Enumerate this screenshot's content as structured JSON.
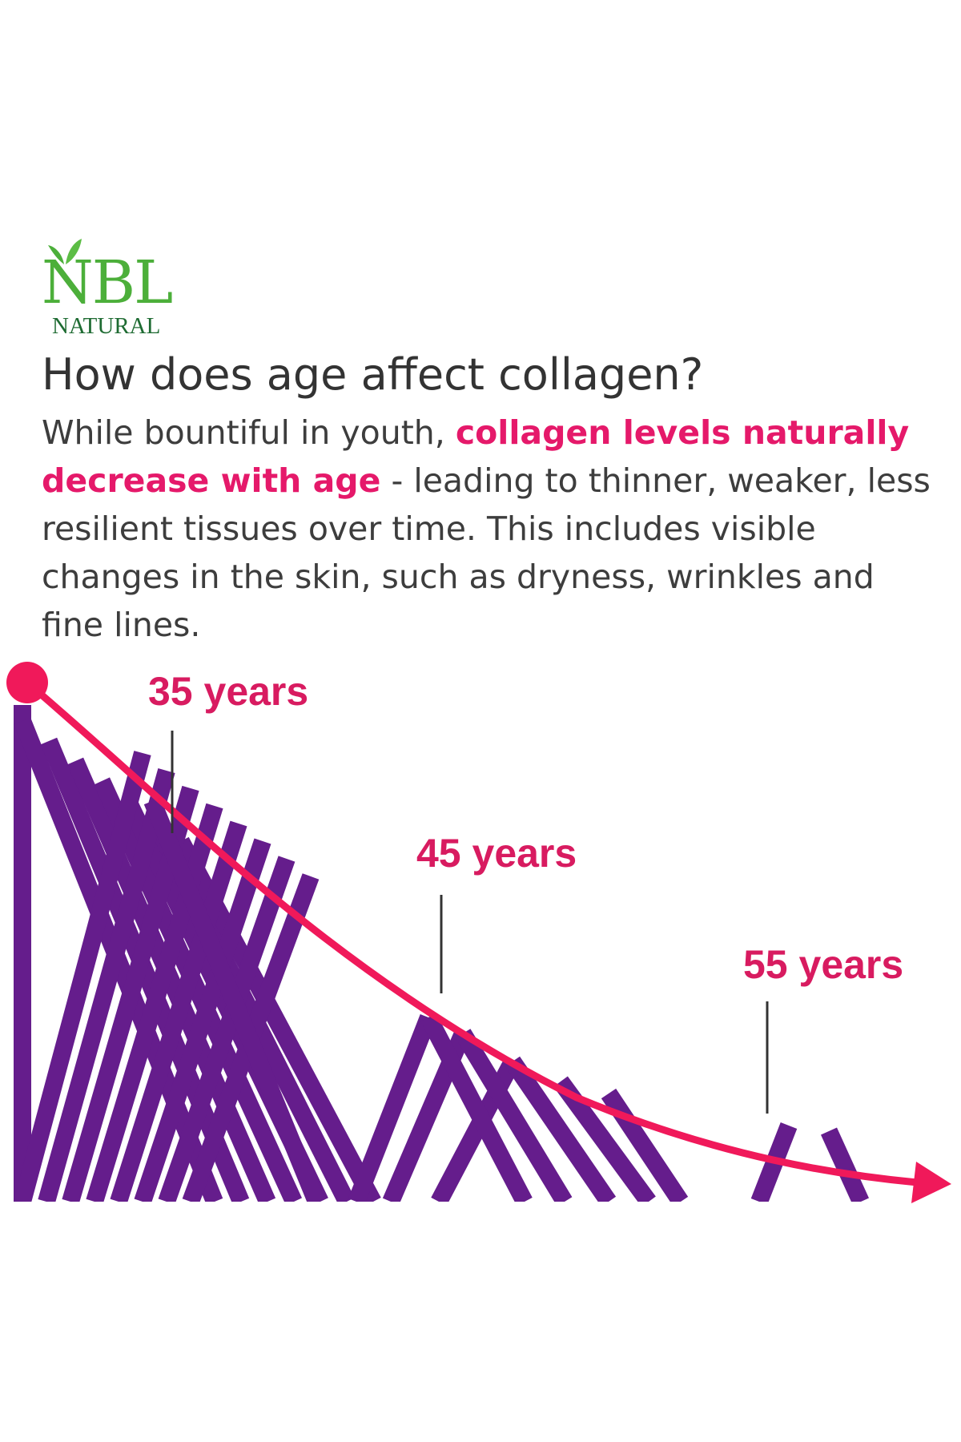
{
  "brand": {
    "name": "NBL",
    "tagline": "NATURAL",
    "icon": "leaf-icon",
    "color": "#4caf3a"
  },
  "headline": "How does age affect collagen?",
  "paragraph": {
    "part1": "While bountiful in youth, ",
    "highlight": "collagen levels naturally decrease with age",
    "part2": " - leading to thinner, weaker, less resilient tissues over time. This includes visible changes in the skin, such as dryness, wrinkles and fine lines."
  },
  "colors": {
    "curve": "#f0195a",
    "fibers": "#651d8c",
    "label": "#d81b60",
    "highlight": "#e5196a"
  },
  "markers": [
    {
      "label": "35 years"
    },
    {
      "label": "45 years"
    },
    {
      "label": "55 years"
    }
  ]
}
